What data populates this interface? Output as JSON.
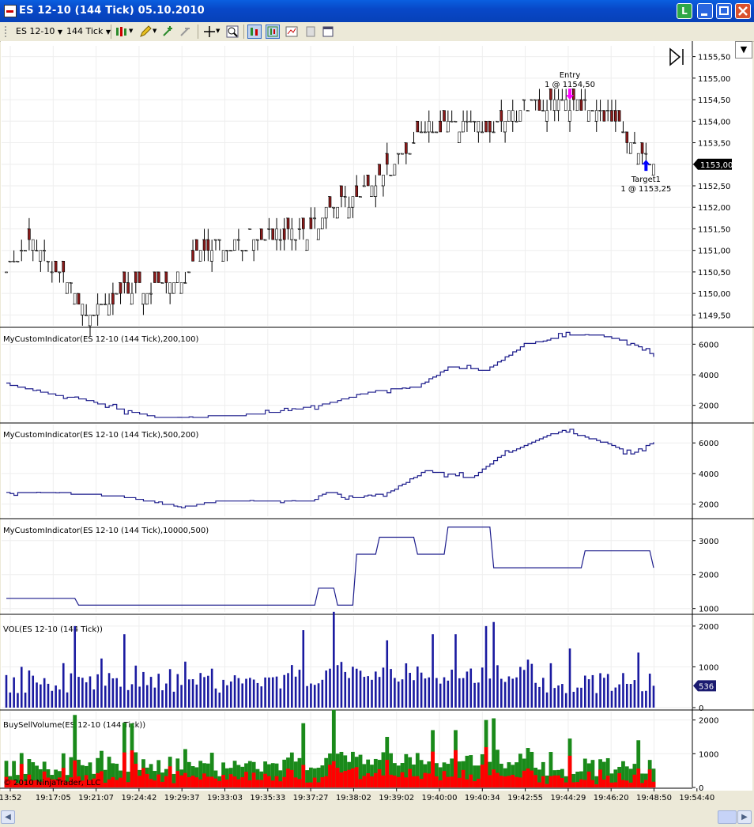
{
  "window": {
    "title": "ES 12-10 (144 Tick)  05.10.2010",
    "btn_l": "L"
  },
  "toolbar": {
    "instrument": "ES 12-10",
    "interval": "144 Tick"
  },
  "colors": {
    "line": "#1c1c8c",
    "vol": "#1a1aa0",
    "buy": "#1a8a1a",
    "sell": "#ff0000",
    "up_bar": "#ffffff",
    "down_bar": "#8b1a1a",
    "entry_arrow": "#ff00ff",
    "exit_arrow": "#0000ff",
    "grid": "#eeeeee"
  },
  "chart_data": [
    {
      "type": "ohlc",
      "name": "price",
      "ylim": [
        1149.25,
        1155.75
      ],
      "yticks": [
        "1155,50",
        "1155,00",
        "1154,50",
        "1154,00",
        "1153,50",
        "1153,00",
        "1152,50",
        "1152,00",
        "1151,50",
        "1151,00",
        "1150,50",
        "1150,00",
        "1149,50"
      ],
      "last_price": "1153,00",
      "close_path": [
        [
          0,
          1150.5
        ],
        [
          6,
          1151.25
        ],
        [
          14,
          1150.5
        ],
        [
          22,
          1149.5
        ],
        [
          30,
          1150.0
        ],
        [
          45,
          1150.25
        ],
        [
          52,
          1151.0
        ],
        [
          62,
          1151.25
        ],
        [
          70,
          1151.25
        ],
        [
          80,
          1151.5
        ],
        [
          86,
          1152.0
        ],
        [
          96,
          1152.5
        ],
        [
          104,
          1153.25
        ],
        [
          110,
          1153.75
        ],
        [
          118,
          1154.0
        ],
        [
          126,
          1153.75
        ],
        [
          136,
          1154.25
        ],
        [
          148,
          1154.5
        ],
        [
          156,
          1154.25
        ],
        [
          162,
          1153.75
        ],
        [
          170,
          1153.0
        ]
      ],
      "annotations": [
        {
          "label": "Entry",
          "sub": "1 @ 1154,50",
          "x_index": 148,
          "price": 1154.5,
          "kind": "entry"
        },
        {
          "label": "Target1",
          "sub": "1 @ 1153,25",
          "x_index": 168,
          "price": 1153.25,
          "kind": "exit"
        }
      ]
    },
    {
      "type": "line",
      "name": "MyCustomIndicator(ES 12-10 (144 Tick),200,100)",
      "ylim": [
        1000,
        7000
      ],
      "yticks": [
        "6000",
        "4000",
        "2000"
      ],
      "path": [
        [
          0,
          3400
        ],
        [
          8,
          2900
        ],
        [
          20,
          2400
        ],
        [
          32,
          1600
        ],
        [
          40,
          1200
        ],
        [
          60,
          1300
        ],
        [
          72,
          1600
        ],
        [
          84,
          2100
        ],
        [
          96,
          2900
        ],
        [
          108,
          3200
        ],
        [
          116,
          4500
        ],
        [
          126,
          4300
        ],
        [
          136,
          6000
        ],
        [
          148,
          6600
        ],
        [
          156,
          6600
        ],
        [
          164,
          6100
        ],
        [
          170,
          5200
        ]
      ]
    },
    {
      "type": "line",
      "name": "MyCustomIndicator(ES 12-10 (144 Tick),500,200)",
      "ylim": [
        1200,
        7200
      ],
      "yticks": [
        "6000",
        "4000",
        "2000"
      ],
      "path": [
        [
          0,
          2800
        ],
        [
          16,
          2700
        ],
        [
          30,
          2500
        ],
        [
          46,
          1800
        ],
        [
          56,
          2200
        ],
        [
          80,
          2200
        ],
        [
          84,
          2800
        ],
        [
          92,
          2400
        ],
        [
          100,
          2700
        ],
        [
          110,
          4200
        ],
        [
          122,
          3700
        ],
        [
          130,
          5200
        ],
        [
          140,
          6300
        ],
        [
          146,
          6800
        ],
        [
          156,
          6100
        ],
        [
          164,
          5300
        ],
        [
          170,
          6100
        ]
      ]
    },
    {
      "type": "line",
      "name": "MyCustomIndicator(ES 12-10 (144 Tick),10000,500)",
      "ylim": [
        900,
        3600
      ],
      "yticks": [
        "3000",
        "2000",
        "1000"
      ],
      "path": [
        [
          0,
          1300
        ],
        [
          18,
          1300
        ],
        [
          19,
          1100
        ],
        [
          80,
          1100
        ],
        [
          82,
          1600
        ],
        [
          86,
          1600
        ],
        [
          87,
          1100
        ],
        [
          90,
          1100
        ],
        [
          92,
          2600
        ],
        [
          96,
          2600
        ],
        [
          98,
          3100
        ],
        [
          106,
          3100
        ],
        [
          108,
          2600
        ],
        [
          114,
          2600
        ],
        [
          116,
          3400
        ],
        [
          126,
          3400
        ],
        [
          128,
          2200
        ],
        [
          150,
          2200
        ],
        [
          152,
          2700
        ],
        [
          168,
          2700
        ],
        [
          170,
          2200
        ]
      ]
    },
    {
      "type": "bar",
      "name": "VOL(ES 12-10 (144 Tick))",
      "ylim": [
        0,
        2250
      ],
      "yticks": [
        "2000",
        "1000",
        "0"
      ],
      "last_value": "536",
      "spikes": [
        [
          18,
          2000
        ],
        [
          31,
          1800
        ],
        [
          78,
          1900
        ],
        [
          86,
          2350
        ],
        [
          100,
          1650
        ],
        [
          112,
          1800
        ],
        [
          118,
          1800
        ],
        [
          126,
          2000
        ],
        [
          128,
          2100
        ],
        [
          148,
          1450
        ],
        [
          166,
          1350
        ]
      ]
    },
    {
      "type": "stacked_bar",
      "name": "BuySellVolume(ES 12-10 (144 Tick))",
      "ylim": [
        0,
        2250
      ],
      "yticks": [
        "2000",
        "1000",
        "0"
      ],
      "spikes": [
        [
          18,
          2150
        ],
        [
          33,
          1900
        ],
        [
          86,
          2300
        ],
        [
          100,
          1500
        ],
        [
          112,
          1700
        ],
        [
          118,
          1700
        ],
        [
          126,
          2000
        ],
        [
          128,
          2050
        ],
        [
          148,
          1450
        ],
        [
          166,
          1400
        ]
      ]
    }
  ],
  "x_axis": {
    "ticks": [
      "13:52",
      "19:17:05",
      "19:21:07",
      "19:24:42",
      "19:29:37",
      "19:33:03",
      "19:35:33",
      "19:37:27",
      "19:38:02",
      "19:39:02",
      "19:40:00",
      "19:40:34",
      "19:42:55",
      "19:44:29",
      "19:46:20",
      "19:48:50",
      "19:54:40"
    ]
  },
  "copyright": "© 2010 NinjaTrader, LLC"
}
